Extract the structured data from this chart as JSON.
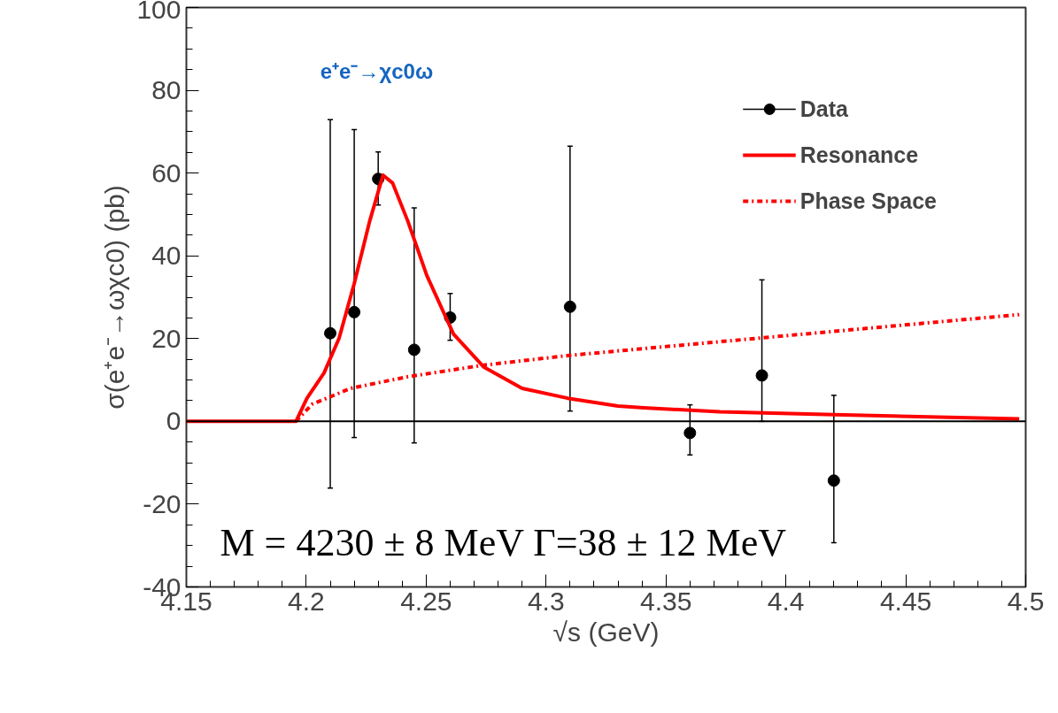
{
  "chart_data": {
    "type": "scatter",
    "xlabel": "√s (GeV)",
    "ylabel": "σ(e⁺e⁻→ωχc0) (pb)",
    "xlim": [
      4.15,
      4.5
    ],
    "xticks": [
      4.15,
      4.2,
      4.25,
      4.3,
      4.35,
      4.4,
      4.45,
      4.5
    ],
    "ylim": [
      -40,
      100
    ],
    "yticks": [
      -40,
      -20,
      0,
      20,
      40,
      60,
      80,
      100
    ],
    "grid": false,
    "legend": "top right",
    "series": [
      {
        "name": "Data",
        "marker": "circle",
        "color": "#000000",
        "x": [
          4.21,
          4.22,
          4.23,
          4.245,
          4.26,
          4.31,
          4.36,
          4.39,
          4.42
        ],
        "values": [
          21.3,
          26.4,
          58.6,
          17.3,
          25.1,
          27.7,
          -2.8,
          11.1,
          -14.3
        ],
        "errors": [
          [
            -16.1,
            72.9
          ],
          [
            -3.9,
            70.5
          ],
          [
            52.3,
            65.1
          ],
          [
            -5.2,
            51.6
          ],
          [
            19.6,
            30.9
          ],
          [
            2.5,
            66.5
          ],
          [
            -8.1,
            4.0
          ],
          [
            0,
            34.2
          ],
          [
            -29.3,
            6.3
          ]
        ]
      },
      {
        "name": "Resonance",
        "type": "line",
        "line_style": "solid",
        "color": "#ff0000",
        "x": [
          4.15,
          4.1957,
          4.2003,
          4.2074,
          4.2137,
          4.22,
          4.2264,
          4.232,
          4.236,
          4.2424,
          4.2503,
          4.2614,
          4.2741,
          4.29,
          4.309,
          4.33,
          4.3408,
          4.3725,
          4.4202,
          4.4678,
          4.4973
        ],
        "values": [
          0,
          0,
          5.6,
          11.7,
          20.1,
          33.3,
          48.3,
          59.5,
          57.6,
          48.3,
          35.2,
          21.1,
          13.1,
          8.0,
          5.6,
          3.7,
          3.3,
          2.3,
          1.6,
          1.0,
          0.6
        ]
      },
      {
        "name": "Phase Space",
        "type": "line",
        "line_style": "dashdot",
        "color": "#ff0000",
        "x": [
          4.1957,
          4.1979,
          4.2026,
          4.2186,
          4.2424,
          4.2741,
          4.309,
          4.3408,
          4.3885,
          4.4361,
          4.4973
        ],
        "values": [
          0,
          1.4,
          4.2,
          8.0,
          10.8,
          13.6,
          15.9,
          17.6,
          20.1,
          22.6,
          25.8
        ]
      }
    ],
    "ref_lines": [
      {
        "axis": "y",
        "value": 0,
        "color": "#000000"
      }
    ],
    "annotations": [
      "e⁺e⁻→χc0ω",
      "M = 4230 ± 8 MeV  Γ=38 ± 12 MeV"
    ]
  }
}
